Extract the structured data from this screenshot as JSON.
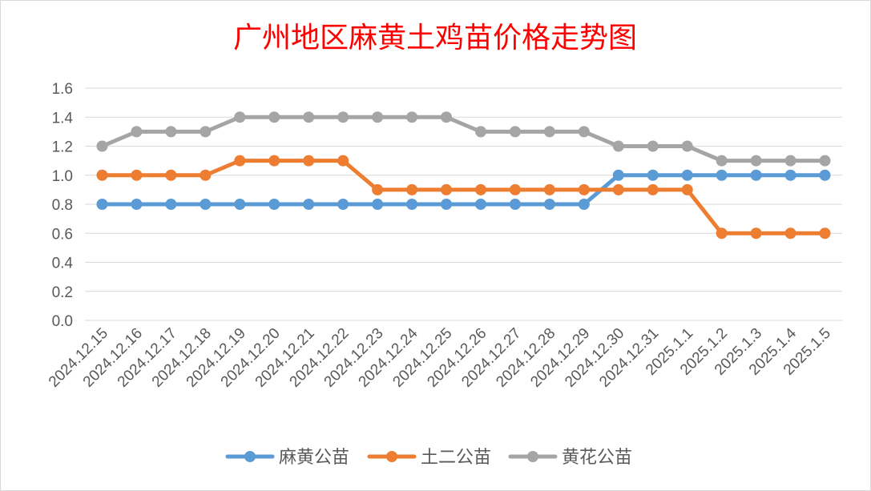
{
  "chart_data": {
    "type": "line",
    "title": "广州地区麻黄土鸡苗价格走势图",
    "xlabel": "",
    "ylabel": "",
    "categories": [
      "2024.12.15",
      "2024.12.16",
      "2024.12.17",
      "2024.12.18",
      "2024.12.19",
      "2024.12.20",
      "2024.12.21",
      "2024.12.22",
      "2024.12.23",
      "2024.12.24",
      "2024.12.25",
      "2024.12.26",
      "2024.12.27",
      "2024.12.28",
      "2024.12.29",
      "2024.12.30",
      "2024.12.31",
      "2025.1.1",
      "2025.1.2",
      "2025.1.3",
      "2025.1.4",
      "2025.1.5"
    ],
    "y_ticks": [
      "0.0",
      "0.2",
      "0.4",
      "0.6",
      "0.8",
      "1.0",
      "1.2",
      "1.4",
      "1.6"
    ],
    "ylim": [
      0,
      1.6
    ],
    "grid": true,
    "legend_position": "bottom",
    "series": [
      {
        "name": "麻黄公苗",
        "color": "#5b9bd5",
        "values": [
          0.8,
          0.8,
          0.8,
          0.8,
          0.8,
          0.8,
          0.8,
          0.8,
          0.8,
          0.8,
          0.8,
          0.8,
          0.8,
          0.8,
          0.8,
          1.0,
          1.0,
          1.0,
          1.0,
          1.0,
          1.0,
          1.0
        ]
      },
      {
        "name": "土二公苗",
        "color": "#ed7d31",
        "values": [
          1.0,
          1.0,
          1.0,
          1.0,
          1.1,
          1.1,
          1.1,
          1.1,
          0.9,
          0.9,
          0.9,
          0.9,
          0.9,
          0.9,
          0.9,
          0.9,
          0.9,
          0.9,
          0.6,
          0.6,
          0.6,
          0.6
        ]
      },
      {
        "name": "黄花公苗",
        "color": "#a5a5a5",
        "values": [
          1.2,
          1.3,
          1.3,
          1.3,
          1.4,
          1.4,
          1.4,
          1.4,
          1.4,
          1.4,
          1.4,
          1.3,
          1.3,
          1.3,
          1.3,
          1.2,
          1.2,
          1.2,
          1.1,
          1.1,
          1.1,
          1.1
        ]
      }
    ],
    "title_color": "#ff0000",
    "gridline_color": "#d9d9d9",
    "tick_label_color": "#595959"
  }
}
